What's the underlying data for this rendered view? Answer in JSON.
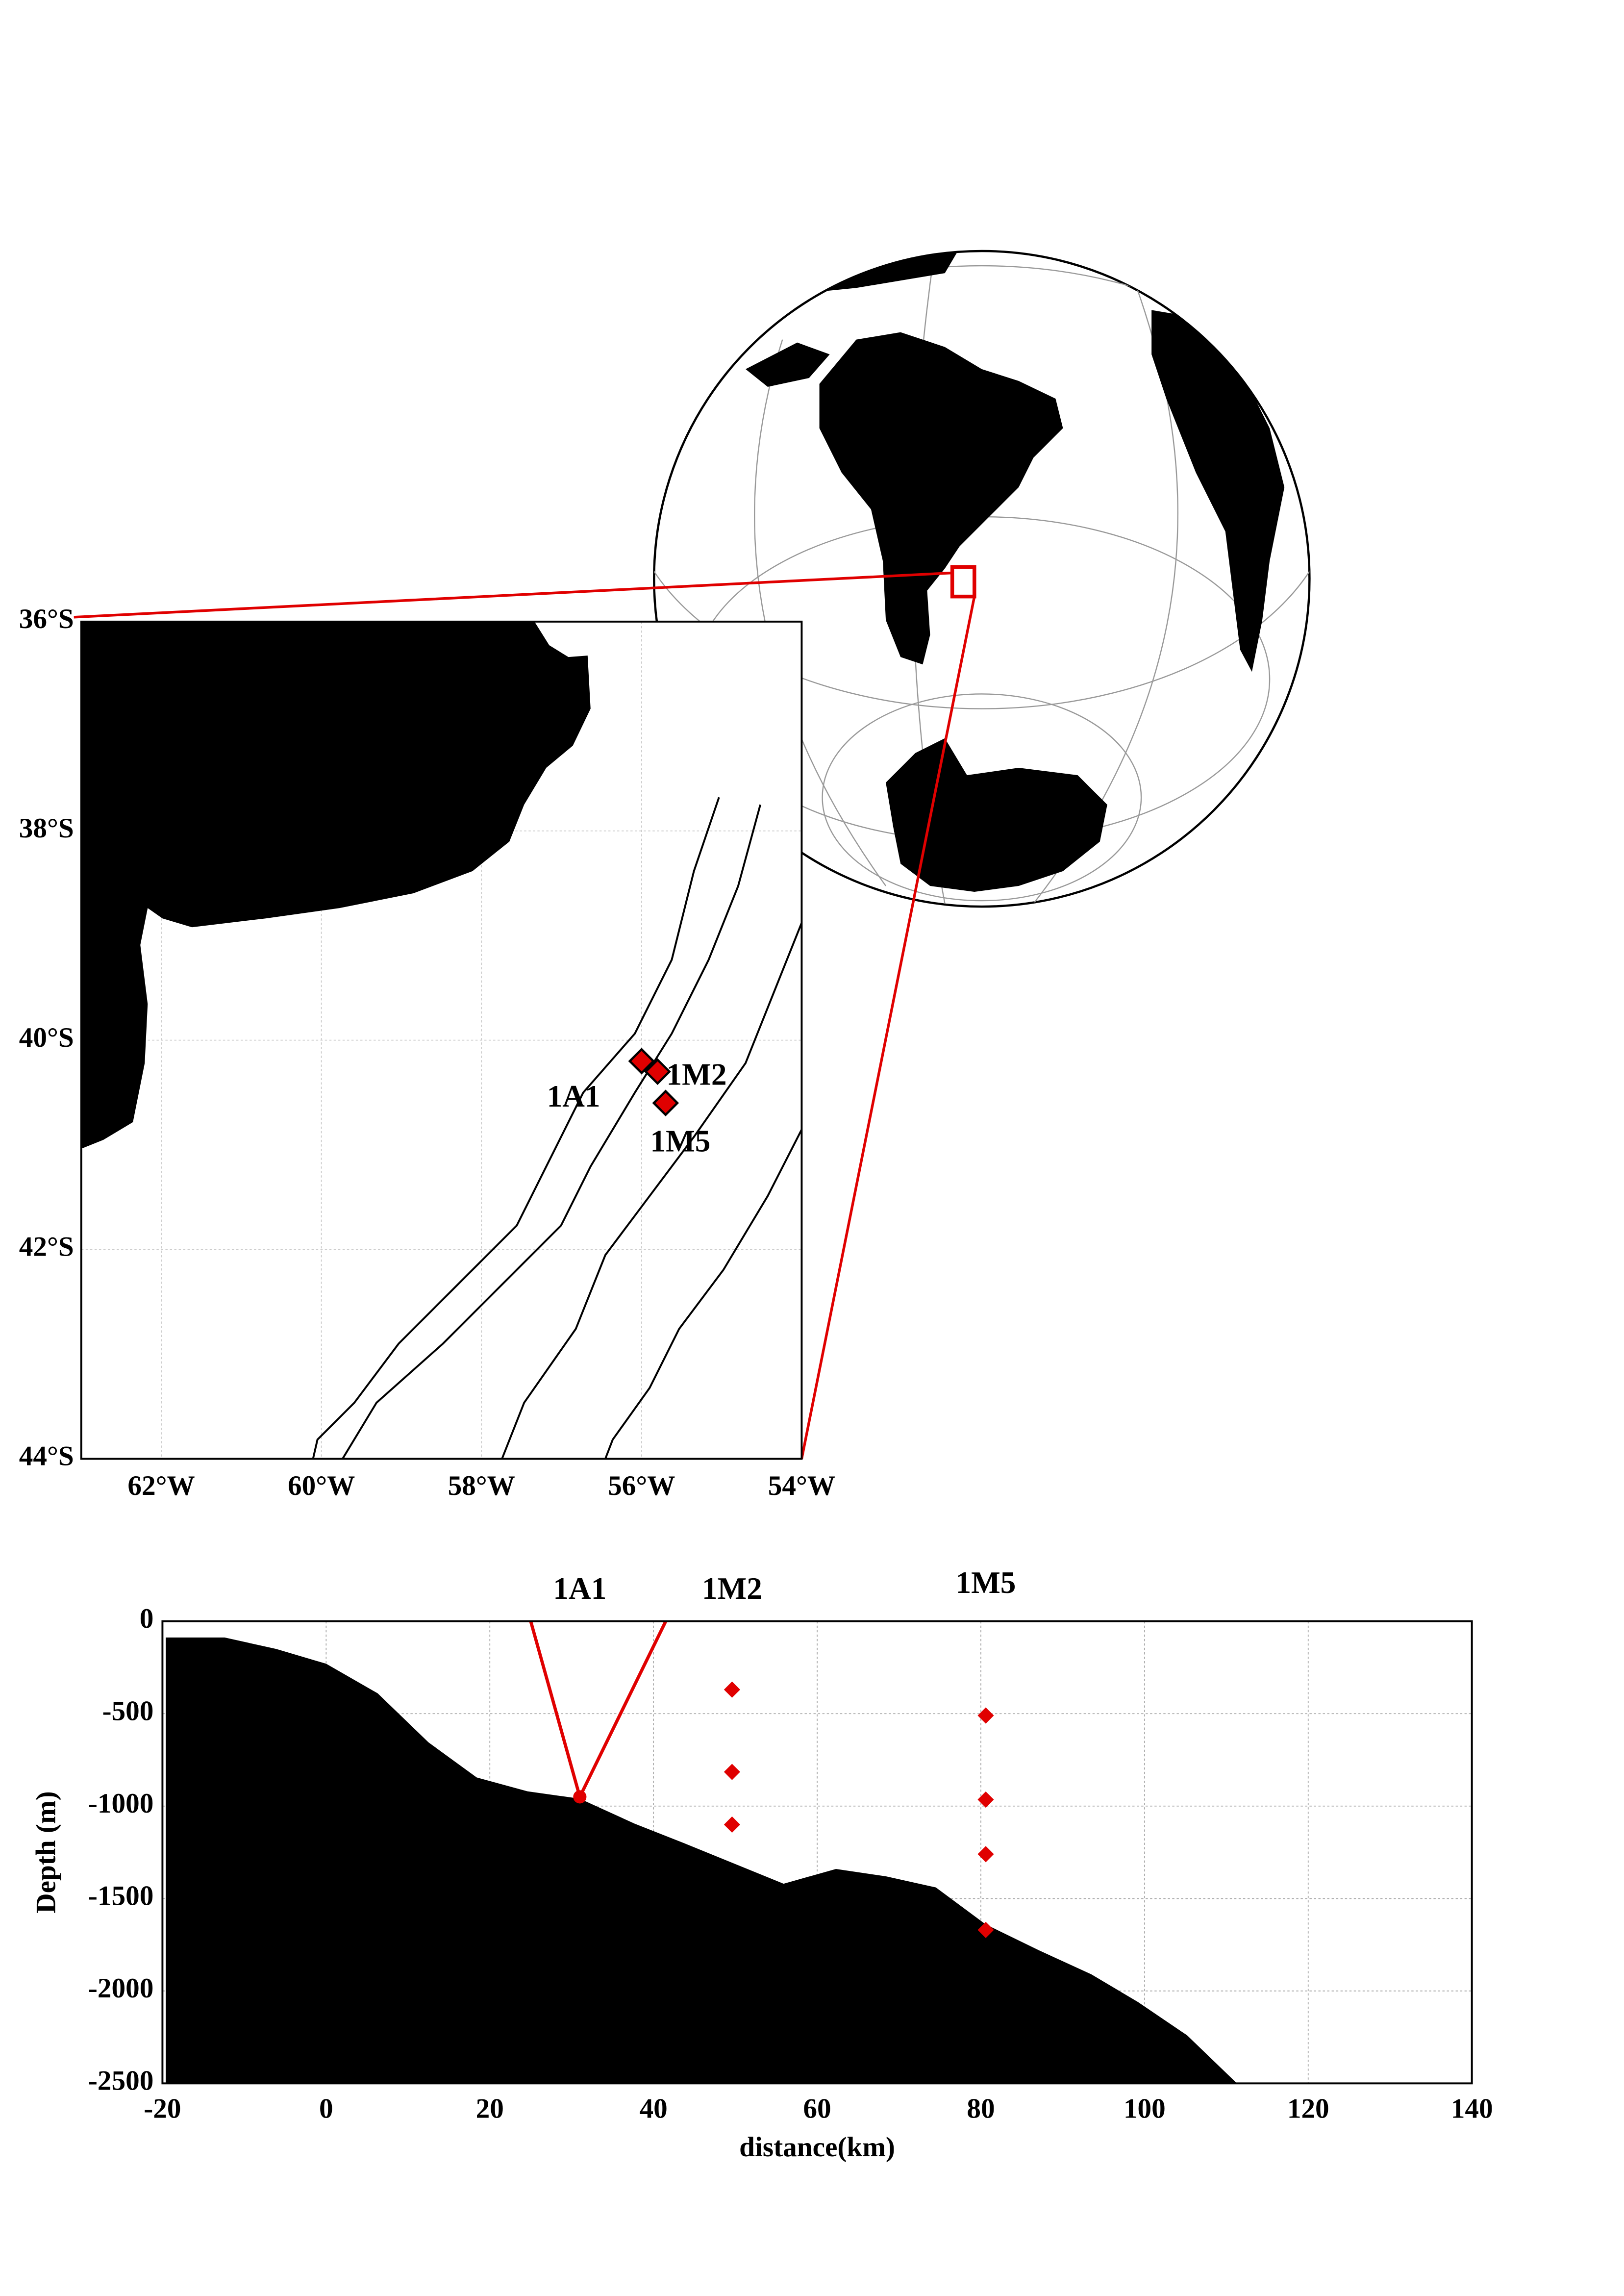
{
  "chart_data": [
    {
      "type": "map",
      "xlim": [
        -63,
        -54
      ],
      "ylim": [
        -44,
        -36
      ],
      "xticks": [
        {
          "value": -62,
          "label": "62°W"
        },
        {
          "value": -60,
          "label": "60°W"
        },
        {
          "value": -58,
          "label": "58°W"
        },
        {
          "value": -56,
          "label": "56°W"
        },
        {
          "value": -54,
          "label": "54°W"
        }
      ],
      "yticks": [
        {
          "value": -36,
          "label": "36°S"
        },
        {
          "value": -38,
          "label": "38°S"
        },
        {
          "value": -40,
          "label": "40°S"
        },
        {
          "value": -42,
          "label": "42°S"
        },
        {
          "value": -44,
          "label": "44°S"
        }
      ],
      "grid": true,
      "stations": {
        "labels": [
          "1A1",
          "1M2",
          "1M5"
        ],
        "x": [
          -56.0,
          -55.8,
          -55.7
        ],
        "y": [
          -40.2,
          -40.3,
          -40.6
        ],
        "color": "#e00000"
      }
    },
    {
      "type": "area",
      "xlim": [
        -20,
        140
      ],
      "ylim": [
        -2500,
        0
      ],
      "xticks": [
        -20,
        0,
        20,
        40,
        60,
        80,
        100,
        120,
        140
      ],
      "yticks": [
        0,
        -500,
        -1000,
        -1500,
        -2000,
        -2500
      ],
      "grid": true,
      "xlabel": "distance(km)",
      "ylabel": "Depth (m)",
      "series": [
        {
          "type": "area",
          "color": "#000000",
          "x": [
            -19.6,
            -12.4,
            -6.1,
            0,
            6.3,
            12.5,
            18.4,
            24.6,
            31,
            37.7,
            43.7,
            49.8,
            55.9,
            62.3,
            68.4,
            74.5,
            80.6,
            87.1,
            93.5,
            99.2,
            105.2,
            111.3
          ],
          "values": [
            -88,
            -88,
            -150,
            -230,
            -390,
            -655,
            -845,
            -920,
            -960,
            -1095,
            -1200,
            -1310,
            -1420,
            -1340,
            -1380,
            -1440,
            -1640,
            -1780,
            -1910,
            -2060,
            -2240,
            -2500
          ]
        },
        {
          "type": "line",
          "color": "#e00000",
          "x": [
            25,
            31,
            41.5
          ],
          "values": [
            0,
            -950,
            0
          ]
        },
        {
          "type": "scatter",
          "marker": "circle",
          "name": "1A1",
          "color": "#e00000",
          "x": [
            31
          ],
          "values": [
            -950
          ]
        },
        {
          "type": "scatter",
          "marker": "diamond",
          "name": "1M2",
          "color": "#e00000",
          "x": [
            49.6,
            49.6,
            49.6
          ],
          "values": [
            -370,
            -815,
            -1100
          ]
        },
        {
          "type": "scatter",
          "marker": "diamond",
          "name": "1M5",
          "color": "#e00000",
          "x": [
            80.6,
            80.6,
            80.6,
            80.6
          ],
          "values": [
            -510,
            -965,
            -1260,
            -1670
          ]
        }
      ]
    }
  ]
}
